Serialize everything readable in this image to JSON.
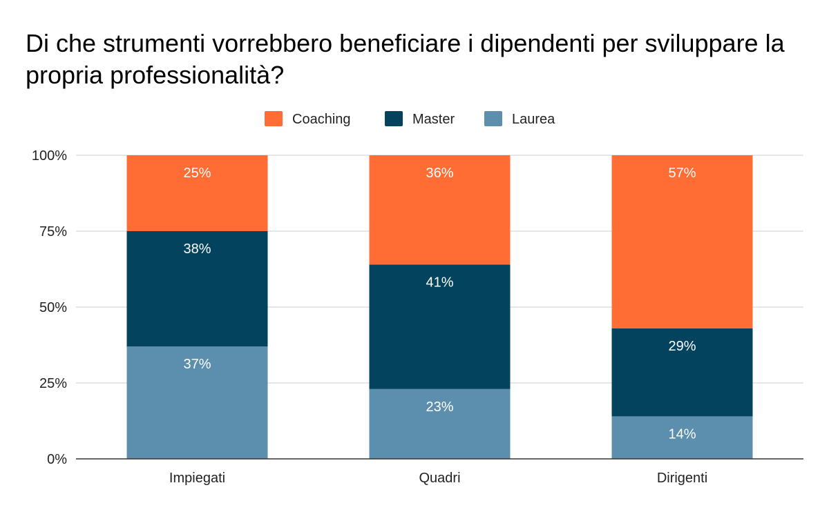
{
  "chart_data": {
    "type": "bar",
    "stacked": true,
    "percent_stacked": true,
    "title": "Di che strumenti vorrebbero beneficiare i dipendenti per sviluppare la propria professionalità?",
    "categories": [
      "Impiegati",
      "Quadri",
      "Dirigenti"
    ],
    "series": [
      {
        "name": "Laurea",
        "color": "#5b8fad",
        "values": [
          37,
          23,
          14
        ],
        "labels": [
          "37%",
          "23%",
          "14%"
        ]
      },
      {
        "name": "Master",
        "color": "#03435e",
        "values": [
          38,
          41,
          29
        ],
        "labels": [
          "38%",
          "41%",
          "29%"
        ]
      },
      {
        "name": "Coaching",
        "color": "#ff6d34",
        "values": [
          25,
          36,
          57
        ],
        "labels": [
          "25%",
          "36%",
          "57%"
        ]
      }
    ],
    "legend_order": [
      "Coaching",
      "Master",
      "Laurea"
    ],
    "legend_position": "top-center",
    "ylim": [
      0,
      100
    ],
    "yticks": [
      0,
      25,
      50,
      75,
      100
    ],
    "ytick_labels": [
      "0%",
      "25%",
      "50%",
      "75%",
      "100%"
    ],
    "grid": true,
    "xlabel": "",
    "ylabel": ""
  }
}
